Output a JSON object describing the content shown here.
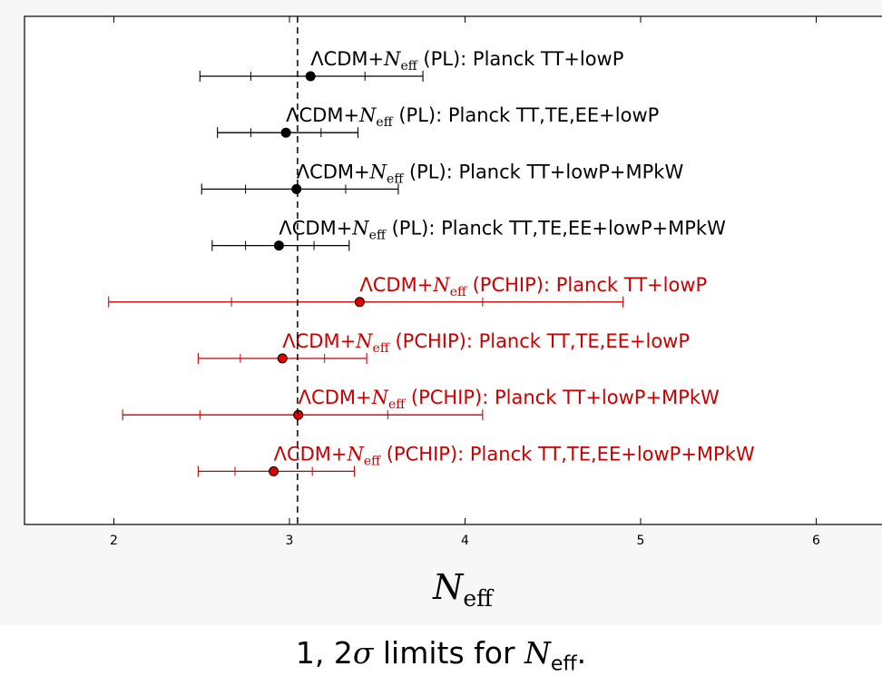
{
  "chart_data": {
    "type": "errorbar",
    "xlabel": {
      "main": "N",
      "sub": "eff"
    },
    "xlim": [
      1.5,
      6.4
    ],
    "x_ticks": [
      "2",
      "3",
      "4",
      "5",
      "6"
    ],
    "x_tick_values": [
      2,
      3,
      4,
      5,
      6
    ],
    "reference_line": {
      "x": 3.046,
      "style": "dashed"
    },
    "colors": {
      "PL": "#000000",
      "PCHIP": "#c80000"
    },
    "series": [
      {
        "label_prefix": "ΛCDM+",
        "n_main": "N",
        "n_sub": "eff",
        "label_suffix": " (PL): Planck TT+lowP",
        "model": "PL",
        "center": 3.12,
        "sigma1": [
          2.78,
          3.43
        ],
        "sigma2": [
          2.49,
          3.76
        ]
      },
      {
        "label_prefix": "ΛCDM+",
        "n_main": "N",
        "n_sub": "eff",
        "label_suffix": " (PL): Planck TT,TE,EE+lowP",
        "model": "PL",
        "center": 2.98,
        "sigma1": [
          2.78,
          3.18
        ],
        "sigma2": [
          2.59,
          3.39
        ]
      },
      {
        "label_prefix": "ΛCDM+",
        "n_main": "N",
        "n_sub": "eff",
        "label_suffix": " (PL): Planck TT+lowP+MPkW",
        "model": "PL",
        "center": 3.04,
        "sigma1": [
          2.75,
          3.32
        ],
        "sigma2": [
          2.5,
          3.62
        ]
      },
      {
        "label_prefix": "ΛCDM+",
        "n_main": "N",
        "n_sub": "eff",
        "label_suffix": " (PL): Planck TT,TE,EE+lowP+MPkW",
        "model": "PL",
        "center": 2.94,
        "sigma1": [
          2.75,
          3.14
        ],
        "sigma2": [
          2.56,
          3.34
        ]
      },
      {
        "label_prefix": "ΛCDM+",
        "n_main": "N",
        "n_sub": "eff",
        "label_suffix": " (PCHIP): Planck TT+lowP",
        "model": "PCHIP",
        "center": 3.4,
        "sigma1": [
          2.67,
          4.1
        ],
        "sigma2": [
          1.97,
          4.9
        ]
      },
      {
        "label_prefix": "ΛCDM+",
        "n_main": "N",
        "n_sub": "eff",
        "label_suffix": " (PCHIP): Planck TT,TE,EE+lowP",
        "model": "PCHIP",
        "center": 2.96,
        "sigma1": [
          2.72,
          3.2
        ],
        "sigma2": [
          2.48,
          3.44
        ]
      },
      {
        "label_prefix": "ΛCDM+",
        "n_main": "N",
        "n_sub": "eff",
        "label_suffix": " (PCHIP): Planck TT+lowP+MPkW",
        "model": "PCHIP",
        "center": 3.05,
        "sigma1": [
          2.49,
          3.56
        ],
        "sigma2": [
          2.05,
          4.1
        ]
      },
      {
        "label_prefix": "ΛCDM+",
        "n_main": "N",
        "n_sub": "eff",
        "label_suffix": " (PCHIP): Planck TT,TE,EE+lowP+MPkW",
        "model": "PCHIP",
        "center": 2.91,
        "sigma1": [
          2.69,
          3.13
        ],
        "sigma2": [
          2.48,
          3.37
        ]
      }
    ]
  },
  "caption": {
    "prefix": "1, 2",
    "sigma": "σ",
    "middle": " limits for ",
    "symbol": "N",
    "sub": "eff",
    "end": "."
  }
}
